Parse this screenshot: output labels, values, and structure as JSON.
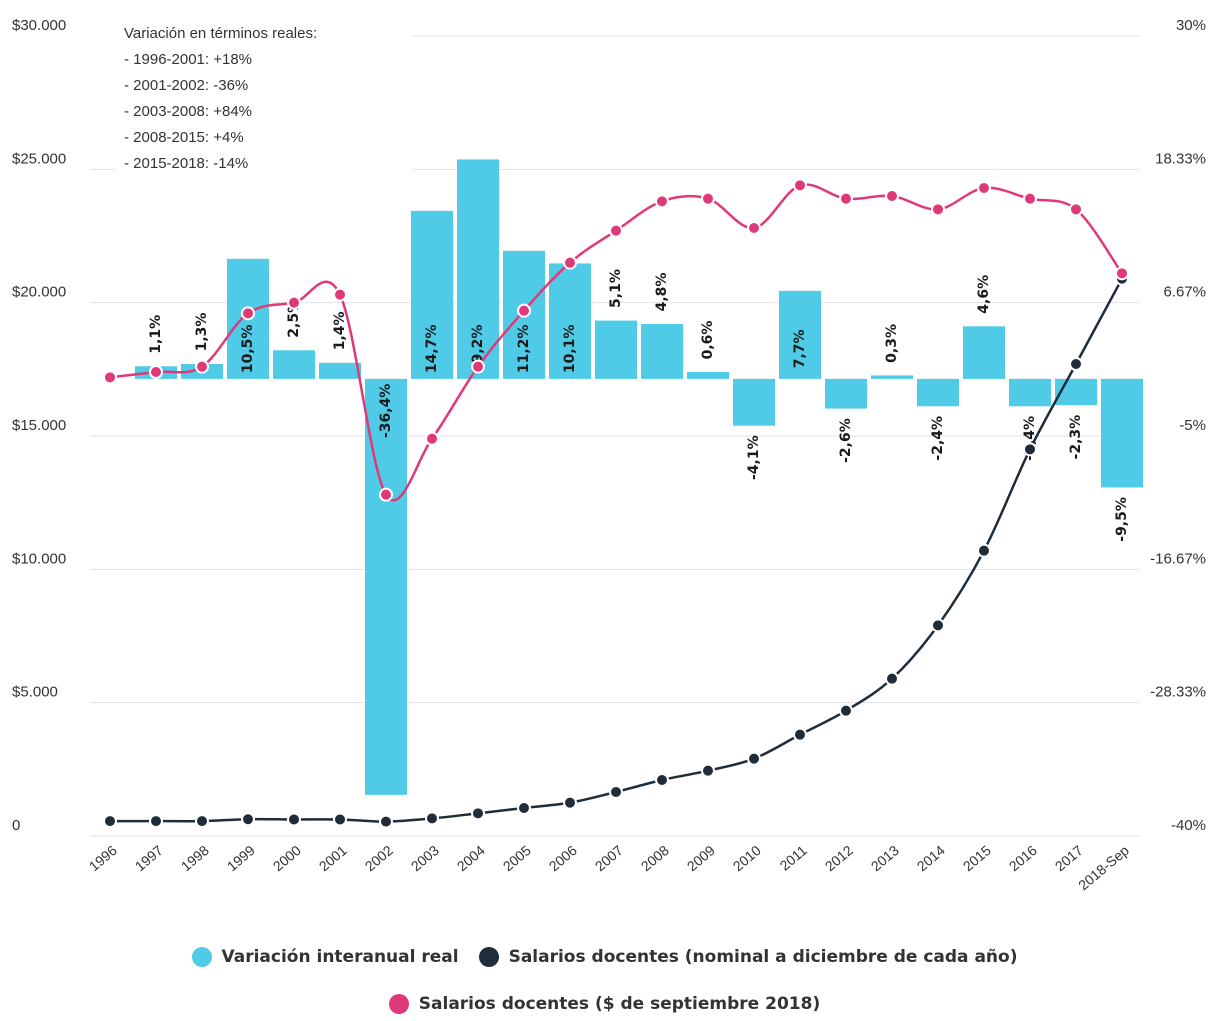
{
  "chart_data": {
    "type": "bar+line",
    "categories": [
      "1996",
      "1997",
      "1998",
      "1999",
      "2000",
      "2001",
      "2002",
      "2003",
      "2004",
      "2005",
      "2006",
      "2007",
      "2008",
      "2009",
      "2010",
      "2011",
      "2012",
      "2013",
      "2014",
      "2015",
      "2016",
      "2017",
      "2018-Sep"
    ],
    "left_axis": {
      "ticks": [
        "$30.000",
        "$25.000",
        "$20.000",
        "$15.000",
        "$10.000",
        "$5.000",
        "0"
      ],
      "ylim": [
        0,
        30000
      ]
    },
    "right_axis": {
      "ticks": [
        "30%",
        "18.33%",
        "6.67%",
        "-5%",
        "-16.67%",
        "-28.33%",
        "-40%"
      ],
      "ylim": [
        -40,
        30
      ]
    },
    "series": [
      {
        "name": "Variación interanual real",
        "kind": "bar",
        "axis": "right",
        "color": "#4fcbe8",
        "values": [
          null,
          1.1,
          1.3,
          10.5,
          2.5,
          1.4,
          -36.4,
          14.7,
          19.2,
          11.2,
          10.1,
          5.1,
          4.8,
          0.6,
          -4.1,
          7.7,
          -2.6,
          0.3,
          -2.4,
          4.6,
          -2.4,
          -2.3,
          -9.5
        ],
        "labels": [
          "",
          "1,1%",
          "1,3%",
          "10,5%",
          "2,5%",
          "1,4%",
          "-36,4%",
          "14,7%",
          "19,2%",
          "11,2%",
          "10,1%",
          "5,1%",
          "4,8%",
          "0,6%",
          "-4,1%",
          "7,7%",
          "-2,6%",
          "0,3%",
          "-2,4%",
          "4,6%",
          "-2,4%",
          "-2,3%",
          "-9,5%"
        ]
      },
      {
        "name": "Salarios docentes (nominal a diciembre de cada año)",
        "kind": "line",
        "axis": "left",
        "color": "#1f2d3a",
        "values": [
          560,
          560,
          560,
          630,
          620,
          620,
          540,
          660,
          850,
          1050,
          1250,
          1650,
          2100,
          2450,
          2900,
          3800,
          4700,
          5900,
          7900,
          10700,
          14500,
          17700,
          20900
        ]
      },
      {
        "name": "Salarios docentes ($ de septiembre 2018)",
        "kind": "line",
        "axis": "left",
        "color": "#e0397a",
        "values": [
          17200,
          17400,
          17600,
          19600,
          20000,
          20300,
          12800,
          14900,
          17600,
          19700,
          21500,
          22700,
          23800,
          23900,
          22800,
          24400,
          23900,
          24000,
          23500,
          24300,
          23900,
          23500,
          21100
        ]
      }
    ],
    "annotation": [
      "Variación en términos reales:",
      "- 1996-2001: +18%",
      "- 2001-2002: -36%",
      "- 2003-2008: +84%",
      "- 2008-2015: +4%",
      "- 2015-2018: -14%"
    ],
    "legend_position": "bottom"
  }
}
